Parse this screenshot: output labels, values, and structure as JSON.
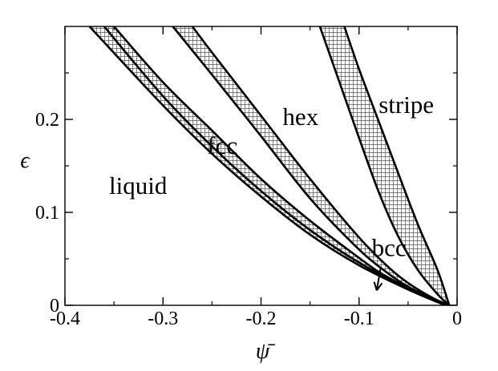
{
  "chart_data": {
    "type": "line",
    "title": "",
    "xlabel": "ψ̄",
    "ylabel": "ϵ",
    "xlim": [
      -0.4,
      0
    ],
    "ylim": [
      0,
      0.3
    ],
    "xticks": [
      -0.4,
      -0.3,
      -0.2,
      -0.1,
      0
    ],
    "xtick_labels": [
      "-0.4",
      "-0.3",
      "-0.2",
      "-0.1",
      "0"
    ],
    "yticks": [
      0,
      0.1,
      0.2
    ],
    "ytick_labels": [
      "0",
      "0.1",
      "0.2"
    ],
    "grid": false,
    "phase_boundaries": [
      {
        "x": [
          -0.375,
          -0.3,
          -0.25,
          -0.2,
          -0.15,
          -0.1,
          -0.05,
          -0.012
        ],
        "y": [
          0.3,
          0.215,
          0.163,
          0.117,
          0.076,
          0.043,
          0.017,
          0.0
        ]
      },
      {
        "x": [
          -0.36,
          -0.3,
          -0.25,
          -0.2,
          -0.15,
          -0.1,
          -0.05,
          -0.012
        ],
        "y": [
          0.3,
          0.225,
          0.171,
          0.123,
          0.081,
          0.046,
          0.018,
          0.0
        ]
      },
      {
        "x": [
          -0.35,
          -0.3,
          -0.25,
          -0.2,
          -0.15,
          -0.1,
          -0.08,
          -0.06,
          -0.04,
          -0.02,
          -0.008
        ],
        "y": [
          0.3,
          0.24,
          0.188,
          0.136,
          0.091,
          0.051,
          0.036,
          0.024,
          0.013,
          0.005,
          0.0
        ]
      },
      {
        "x": [
          -0.29,
          -0.25,
          -0.2,
          -0.15,
          -0.1,
          -0.07,
          -0.05,
          -0.025,
          -0.008
        ],
        "y": [
          0.3,
          0.248,
          0.182,
          0.115,
          0.06,
          0.034,
          0.02,
          0.007,
          0.0
        ]
      },
      {
        "x": [
          -0.27,
          -0.25,
          -0.2,
          -0.15,
          -0.1,
          -0.07,
          -0.05,
          -0.025,
          -0.008
        ],
        "y": [
          0.3,
          0.272,
          0.204,
          0.136,
          0.073,
          0.041,
          0.024,
          0.008,
          0.0
        ]
      },
      {
        "x": [
          -0.14,
          -0.12,
          -0.1,
          -0.08,
          -0.06,
          -0.04,
          -0.02,
          -0.008
        ],
        "y": [
          0.3,
          0.24,
          0.18,
          0.122,
          0.074,
          0.038,
          0.012,
          0.0
        ]
      },
      {
        "x": [
          -0.115,
          -0.1,
          -0.08,
          -0.06,
          -0.04,
          -0.02,
          -0.008
        ],
        "y": [
          0.3,
          0.254,
          0.198,
          0.142,
          0.087,
          0.038,
          0.0
        ]
      }
    ],
    "coexistence_regions": [
      {
        "between": [
          0,
          1
        ]
      },
      {
        "between": [
          1,
          2
        ]
      },
      {
        "between": [
          3,
          4
        ]
      },
      {
        "between": [
          5,
          6
        ]
      }
    ],
    "annotations": [
      {
        "text": "liquid",
        "x": -0.355,
        "y": 0.12
      },
      {
        "text": "fcc",
        "x": -0.255,
        "y": 0.163
      },
      {
        "text": "hex",
        "x": -0.178,
        "y": 0.194
      },
      {
        "text": "stripe",
        "x": -0.08,
        "y": 0.207
      },
      {
        "text": "bcc",
        "x": -0.087,
        "y": 0.053
      }
    ],
    "arrow": {
      "from": [
        -0.078,
        0.04
      ],
      "to": [
        -0.082,
        0.016
      ]
    }
  }
}
